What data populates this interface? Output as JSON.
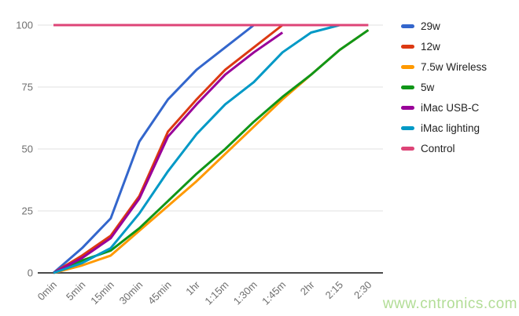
{
  "watermark": "www.cntronics.com",
  "axis": {
    "label_color": "#6e6e6e",
    "gridline_color": "#e2e2e2",
    "baseline_color": "#4a4a4a"
  },
  "chart_data": {
    "type": "line",
    "title": "",
    "xlabel": "",
    "ylabel": "",
    "ylim": [
      0,
      100
    ],
    "grid": true,
    "legend_position": "right",
    "categories": [
      "0min",
      "5min",
      "15min",
      "30min",
      "45min",
      "1hr",
      "1:15m",
      "1:30m",
      "1:45m",
      "2hr",
      "2:15",
      "2:30"
    ],
    "y_ticks": [
      0,
      25,
      50,
      75,
      100
    ],
    "series": [
      {
        "name": "29w",
        "color": "#3366cc",
        "values": [
          0,
          10,
          22,
          53,
          70,
          82,
          91,
          100
        ]
      },
      {
        "name": "12w",
        "color": "#dc3912",
        "values": [
          0,
          7,
          15,
          31,
          57,
          70,
          82,
          91,
          100
        ]
      },
      {
        "name": "7.5w Wireless",
        "color": "#ff9900",
        "values": [
          0,
          3,
          7,
          17,
          27,
          37,
          48,
          59,
          70,
          80,
          90,
          98
        ]
      },
      {
        "name": "5w",
        "color": "#109618",
        "values": [
          0,
          5,
          9,
          18,
          29,
          40,
          50,
          61,
          71,
          80,
          90,
          98
        ]
      },
      {
        "name": "iMac USB-C",
        "color": "#990099",
        "values": [
          0,
          6,
          14,
          30,
          55,
          68,
          80,
          89,
          97
        ]
      },
      {
        "name": "iMac lighting",
        "color": "#0099c6",
        "values": [
          0,
          4,
          10,
          24,
          41,
          56,
          68,
          77,
          89,
          97,
          100
        ]
      },
      {
        "name": "Control",
        "color": "#dd4477",
        "values": [
          100,
          100,
          100,
          100,
          100,
          100,
          100,
          100,
          100,
          100,
          100,
          100
        ]
      }
    ]
  }
}
